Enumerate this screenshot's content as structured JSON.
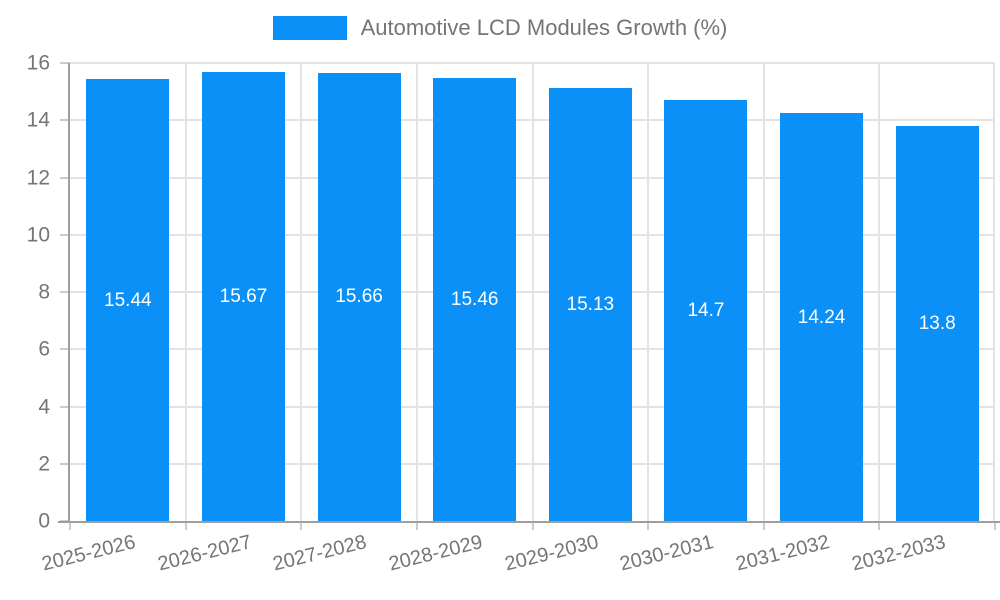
{
  "legend": {
    "label": "Automotive LCD Modules Growth (%)"
  },
  "chart_data": {
    "type": "bar",
    "title": "Automotive LCD Modules Growth (%)",
    "categories": [
      "2025-2026",
      "2026-2027",
      "2027-2028",
      "2028-2029",
      "2029-2030",
      "2030-2031",
      "2031-2032",
      "2032-2033"
    ],
    "values": [
      15.44,
      15.67,
      15.66,
      15.46,
      15.13,
      14.7,
      14.24,
      13.8
    ],
    "value_labels": [
      "15.44",
      "15.67",
      "15.66",
      "15.46",
      "15.13",
      "14.7",
      "14.24",
      "13.8"
    ],
    "xlabel": "",
    "ylabel": "",
    "ylim": [
      0,
      16
    ],
    "yticks": [
      0,
      2,
      4,
      6,
      8,
      10,
      12,
      14,
      16
    ],
    "grid": true,
    "legend_position": "top"
  },
  "colors": {
    "bar": "#0b90f8",
    "grid": "#e3e3e3",
    "axis": "#9e9e9e",
    "tickmark": "#cccccc",
    "text": "#757575",
    "value_text": "#ffffff"
  }
}
